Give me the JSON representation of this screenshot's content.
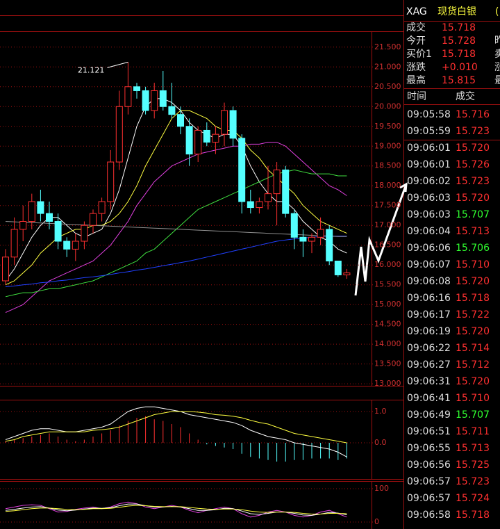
{
  "chart_data": [
    {
      "type": "candlestick",
      "ylim": [
        12.95,
        21.9
      ],
      "yticks": [
        {
          "value": 13,
          "label": "13.000"
        },
        {
          "value": 13.5,
          "label": "13.500"
        },
        {
          "value": 14,
          "label": "14.000"
        },
        {
          "value": 14.5,
          "label": "14.500"
        },
        {
          "value": 15,
          "label": "15.000"
        },
        {
          "value": 15.5,
          "label": "15.500"
        },
        {
          "value": 16,
          "label": "16.000"
        },
        {
          "value": 16.5,
          "label": "16.500"
        },
        {
          "value": 17,
          "label": "17.000"
        },
        {
          "value": 17.5,
          "label": "17.500"
        },
        {
          "value": 18,
          "label": "18.000"
        },
        {
          "value": 18.5,
          "label": "18.500"
        },
        {
          "value": 19,
          "label": "19.000"
        },
        {
          "value": 19.5,
          "label": "19.500"
        },
        {
          "value": 20,
          "label": "20.000"
        },
        {
          "value": 20.5,
          "label": "20.500"
        },
        {
          "value": 21,
          "label": "21.000"
        },
        {
          "value": 21.5,
          "label": "21.500"
        }
      ],
      "grid": true,
      "up_color": "#ff3030",
      "down_color": "#54ffff",
      "open": [
        15.6,
        16.2,
        16.9,
        17.1,
        17.6,
        17.3,
        17.1,
        16.6,
        16.4,
        16.6,
        17.0,
        17.3,
        17.6,
        18.6,
        20.0,
        20.5,
        20.4,
        19.9,
        20.4,
        20.0,
        19.8,
        19.5,
        18.8,
        19.4,
        19.1,
        19.3,
        19.9,
        19.2,
        17.6,
        17.45,
        17.6,
        17.8,
        18.4,
        17.3,
        16.7,
        16.6,
        16.7,
        16.9,
        16.1,
        15.75
      ],
      "high": [
        16.4,
        17.2,
        17.5,
        17.8,
        17.9,
        17.6,
        17.3,
        16.7,
        16.8,
        17.1,
        17.4,
        17.7,
        18.9,
        20.4,
        21.121,
        20.6,
        20.5,
        20.6,
        20.9,
        20.6,
        20.0,
        19.7,
        19.5,
        19.6,
        19.5,
        20.1,
        20.0,
        19.3,
        17.9,
        17.7,
        18.5,
        18.6,
        18.5,
        17.4,
        16.9,
        16.8,
        17.2,
        17.0,
        16.1,
        15.9
      ],
      "low": [
        15.5,
        16.0,
        16.6,
        16.9,
        17.1,
        16.9,
        16.4,
        16.2,
        16.1,
        16.4,
        16.8,
        17.1,
        17.4,
        18.4,
        19.8,
        20.2,
        19.8,
        19.7,
        19.9,
        19.7,
        19.3,
        18.5,
        18.6,
        19.0,
        18.8,
        19.0,
        19.0,
        17.3,
        17.3,
        17.3,
        17.4,
        17.0,
        17.2,
        16.4,
        16.2,
        16.3,
        16.5,
        16.0,
        15.7,
        15.65
      ],
      "close": [
        16.2,
        16.9,
        17.1,
        17.6,
        17.3,
        17.1,
        16.6,
        16.4,
        16.6,
        17.0,
        17.3,
        17.6,
        18.6,
        20.0,
        20.5,
        20.4,
        19.9,
        20.4,
        20.0,
        19.8,
        19.5,
        18.8,
        19.4,
        19.1,
        19.3,
        19.9,
        19.2,
        17.6,
        17.45,
        17.6,
        17.8,
        18.4,
        17.3,
        16.7,
        16.6,
        16.7,
        16.9,
        16.1,
        15.75,
        15.8
      ],
      "annotation": 21.121,
      "series": [
        {
          "color": "#ffffff",
          "values": [
            15.6,
            15.9,
            16.3,
            16.7,
            17.0,
            17.2,
            17.2,
            17.0,
            16.8,
            16.7,
            16.8,
            16.9,
            17.3,
            17.9,
            18.7,
            19.5,
            20.0,
            20.2,
            20.2,
            20.1,
            19.9,
            19.6,
            19.4,
            19.3,
            19.2,
            19.3,
            19.3,
            19.0,
            18.5,
            18.1,
            17.8,
            17.6,
            17.6,
            17.4,
            17.1,
            16.9,
            16.7,
            16.6,
            16.4,
            16.3
          ]
        },
        {
          "color": "#ffff40",
          "values": [
            15.5,
            15.6,
            15.8,
            16.0,
            16.3,
            16.5,
            16.7,
            16.8,
            16.9,
            16.9,
            17.0,
            17.0,
            17.1,
            17.3,
            17.6,
            18.0,
            18.5,
            18.9,
            19.3,
            19.7,
            19.9,
            19.9,
            19.8,
            19.7,
            19.5,
            19.4,
            19.4,
            19.2,
            18.9,
            18.7,
            18.4,
            18.2,
            18.0,
            17.8,
            17.5,
            17.3,
            17.1,
            17.0,
            16.9,
            16.8
          ]
        },
        {
          "color": "#e040e0",
          "values": [
            14.8,
            14.9,
            15.0,
            15.2,
            15.4,
            15.6,
            15.7,
            15.8,
            15.9,
            16.0,
            16.1,
            16.3,
            16.5,
            16.8,
            17.1,
            17.5,
            17.8,
            18.1,
            18.3,
            18.5,
            18.6,
            18.7,
            18.8,
            18.85,
            18.9,
            18.95,
            19.0,
            19.0,
            19.05,
            19.05,
            19.1,
            19.1,
            19.0,
            18.8,
            18.6,
            18.4,
            18.2,
            18.0,
            17.9,
            17.75
          ]
        },
        {
          "color": "#40e040",
          "values": [
            15.2,
            15.25,
            15.3,
            15.3,
            15.35,
            15.4,
            15.4,
            15.45,
            15.5,
            15.55,
            15.6,
            15.7,
            15.8,
            15.9,
            16.0,
            16.1,
            16.3,
            16.4,
            16.6,
            16.8,
            17.0,
            17.2,
            17.4,
            17.5,
            17.6,
            17.7,
            17.8,
            17.9,
            18.0,
            18.1,
            18.2,
            18.3,
            18.35,
            18.4,
            18.35,
            18.3,
            18.3,
            18.3,
            18.25,
            18.25
          ]
        },
        {
          "color": "#2040ff",
          "values": [
            15.45,
            15.47,
            15.5,
            15.52,
            15.55,
            15.57,
            15.6,
            15.62,
            15.65,
            15.68,
            15.7,
            15.73,
            15.76,
            15.8,
            15.83,
            15.87,
            15.9,
            15.94,
            15.98,
            16.02,
            16.06,
            16.1,
            16.15,
            16.2,
            16.25,
            16.3,
            16.35,
            16.4,
            16.45,
            16.5,
            16.55,
            16.6,
            16.63,
            16.66,
            16.68,
            16.7,
            16.72,
            16.73,
            16.73,
            16.73
          ]
        },
        {
          "color": "#909090",
          "values": [
            17.1,
            17.09,
            17.08,
            17.07,
            17.06,
            17.05,
            17.04,
            17.03,
            17.02,
            17.01,
            17.0,
            16.99,
            16.98,
            16.97,
            16.96,
            16.95,
            16.94,
            16.93,
            16.92,
            16.91,
            16.9,
            16.89,
            16.88,
            16.87,
            16.86,
            16.85,
            16.84,
            16.83,
            16.82,
            16.81,
            16.8,
            16.79,
            16.78,
            16.77,
            16.76,
            16.75,
            16.74,
            16.73,
            16.72,
            16.72
          ]
        }
      ]
    },
    {
      "type": "macd",
      "ylim": [
        -1.133,
        1.333
      ],
      "yticks": [
        {
          "value": 1,
          "label": "1.0"
        },
        {
          "value": 0,
          "label": "0.0"
        }
      ],
      "grid": true,
      "up_color": "#ff3030",
      "down_color": "#54ffff",
      "histogram": [
        0.05,
        0.1,
        0.15,
        0.2,
        0.25,
        0.3,
        0.2,
        0.1,
        0.05,
        0.1,
        0.2,
        0.3,
        0.4,
        0.55,
        0.7,
        0.8,
        0.85,
        0.75,
        0.7,
        0.6,
        0.5,
        0.3,
        0.1,
        -0.05,
        -0.1,
        -0.15,
        -0.2,
        -0.35,
        -0.45,
        -0.5,
        -0.55,
        -0.6,
        -0.6,
        -0.55,
        -0.55,
        -0.5,
        -0.5,
        -0.5,
        -0.55,
        -0.5
      ],
      "series": [
        {
          "color": "#ffffff",
          "values": [
            0.1,
            0.2,
            0.3,
            0.4,
            0.45,
            0.45,
            0.4,
            0.35,
            0.35,
            0.4,
            0.45,
            0.5,
            0.6,
            0.8,
            1.0,
            1.1,
            1.15,
            1.15,
            1.1,
            1.05,
            1.0,
            0.9,
            0.85,
            0.8,
            0.75,
            0.7,
            0.65,
            0.55,
            0.4,
            0.3,
            0.2,
            0.15,
            0.1,
            0.0,
            -0.05,
            -0.1,
            -0.15,
            -0.2,
            -0.3,
            -0.45
          ]
        },
        {
          "color": "#ffff40",
          "values": [
            0.05,
            0.1,
            0.2,
            0.25,
            0.3,
            0.35,
            0.35,
            0.35,
            0.35,
            0.35,
            0.4,
            0.42,
            0.45,
            0.5,
            0.6,
            0.7,
            0.8,
            0.9,
            0.95,
            1.0,
            1.0,
            1.0,
            0.98,
            0.95,
            0.9,
            0.88,
            0.85,
            0.8,
            0.72,
            0.65,
            0.6,
            0.5,
            0.4,
            0.3,
            0.25,
            0.2,
            0.15,
            0.1,
            0.05,
            0.0
          ]
        }
      ]
    },
    {
      "type": "kdj",
      "ylim": [
        -20.8,
        116.7
      ],
      "yticks": [
        100,
        0
      ],
      "grid": true,
      "series": [
        {
          "color": "#e040e0",
          "values": [
            40,
            45,
            50,
            52,
            50,
            40,
            30,
            32,
            38,
            42,
            45,
            40,
            45,
            55,
            60,
            55,
            45,
            40,
            45,
            50,
            45,
            35,
            28,
            35,
            40,
            45,
            40,
            25,
            15,
            20,
            30,
            35,
            30,
            20,
            15,
            20,
            30,
            35,
            25,
            15
          ]
        },
        {
          "color": "#ffffff",
          "values": [
            35,
            38,
            42,
            45,
            46,
            42,
            36,
            34,
            36,
            39,
            42,
            41,
            43,
            49,
            54,
            54,
            49,
            45,
            45,
            47,
            45,
            40,
            35,
            35,
            37,
            41,
            40,
            33,
            25,
            23,
            26,
            30,
            30,
            26,
            21,
            20,
            24,
            29,
            27,
            22
          ]
        },
        {
          "color": "#ffff40",
          "values": [
            32,
            34,
            37,
            40,
            42,
            42,
            40,
            38,
            37,
            38,
            40,
            40,
            41,
            44,
            48,
            50,
            49,
            47,
            46,
            46,
            46,
            44,
            41,
            39,
            38,
            39,
            39,
            37,
            33,
            30,
            29,
            30,
            30,
            29,
            26,
            24,
            24,
            26,
            26,
            25
          ]
        }
      ]
    }
  ],
  "quote_panel": {
    "symbol": "XAG",
    "name": "现货白银",
    "name_tail": "(",
    "info": [
      {
        "label": "成交",
        "value": "15.718"
      },
      {
        "label": "今开",
        "value": "15.728",
        "tail": "昨"
      },
      {
        "label": "买价1",
        "value": "15.718",
        "tail": "卖"
      },
      {
        "label": "涨跌",
        "value": "+0.010",
        "tail": "涨"
      },
      {
        "label": "最高",
        "value": "15.815",
        "tail": "最"
      }
    ],
    "columns": [
      "时间",
      "成交"
    ],
    "up_color": "#ff3030",
    "down_color": "#30ff30",
    "ticks": [
      {
        "time": "09:05:58",
        "price": "15.716",
        "dir": "up"
      },
      {
        "time": "09:05:59",
        "price": "15.723",
        "dir": "up"
      },
      {
        "time": "09:06:01",
        "price": "15.720",
        "dir": "up"
      },
      {
        "time": "09:06:01",
        "price": "15.726",
        "dir": "up"
      },
      {
        "time": "09:06:02",
        "price": "15.723",
        "dir": "up"
      },
      {
        "time": "09:06:03",
        "price": "15.720",
        "dir": "up"
      },
      {
        "time": "09:06:03",
        "price": "15.707",
        "dir": "down"
      },
      {
        "time": "09:06:04",
        "price": "15.713",
        "dir": "up"
      },
      {
        "time": "09:06:06",
        "price": "15.706",
        "dir": "down"
      },
      {
        "time": "09:06:07",
        "price": "15.710",
        "dir": "up"
      },
      {
        "time": "09:06:08",
        "price": "15.720",
        "dir": "up"
      },
      {
        "time": "09:06:16",
        "price": "15.718",
        "dir": "up"
      },
      {
        "time": "09:06:17",
        "price": "15.722",
        "dir": "up"
      },
      {
        "time": "09:06:19",
        "price": "15.720",
        "dir": "up"
      },
      {
        "time": "09:06:22",
        "price": "15.714",
        "dir": "up"
      },
      {
        "time": "09:06:27",
        "price": "15.712",
        "dir": "up"
      },
      {
        "time": "09:06:31",
        "price": "15.720",
        "dir": "up"
      },
      {
        "time": "09:06:41",
        "price": "15.710",
        "dir": "up"
      },
      {
        "time": "09:06:49",
        "price": "15.707",
        "dir": "down"
      },
      {
        "time": "09:06:51",
        "price": "15.711",
        "dir": "up"
      },
      {
        "time": "09:06:55",
        "price": "15.713",
        "dir": "up"
      },
      {
        "time": "09:06:56",
        "price": "15.725",
        "dir": "up"
      },
      {
        "time": "09:06:57",
        "price": "15.723",
        "dir": "up"
      },
      {
        "time": "09:06:57",
        "price": "15.724",
        "dir": "up"
      },
      {
        "time": "09:06:58",
        "price": "15.718",
        "dir": "up"
      }
    ]
  }
}
